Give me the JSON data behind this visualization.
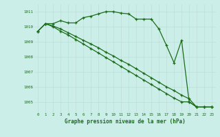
{
  "title": "Graphe pression niveau de la mer (hPa)",
  "background_color": "#cceee8",
  "grid_color": "#c0ddd8",
  "line_color": "#1a6b1a",
  "x_labels": [
    "0",
    "1",
    "2",
    "3",
    "4",
    "5",
    "6",
    "7",
    "8",
    "9",
    "10",
    "11",
    "12",
    "13",
    "14",
    "15",
    "16",
    "17",
    "18",
    "19",
    "20",
    "21",
    "22",
    "23"
  ],
  "ylim": [
    1004.3,
    1011.5
  ],
  "yticks": [
    1005,
    1006,
    1007,
    1008,
    1009,
    1010,
    1011
  ],
  "series1": [
    1009.7,
    1010.2,
    1010.2,
    1010.4,
    1010.25,
    1010.25,
    1010.6,
    1010.7,
    1010.85,
    1011.0,
    1011.0,
    1010.9,
    1010.85,
    1010.5,
    1010.5,
    1010.5,
    1009.85,
    1008.75,
    1007.6,
    1009.1,
    1005.0,
    1004.65,
    1004.65,
    1004.65
  ],
  "series2": [
    1009.7,
    1010.2,
    1010.05,
    1009.85,
    1009.6,
    1009.35,
    1009.1,
    1008.85,
    1008.6,
    1008.3,
    1008.05,
    1007.75,
    1007.5,
    1007.2,
    1006.9,
    1006.6,
    1006.3,
    1006.0,
    1005.75,
    1005.45,
    1005.2,
    1004.65,
    1004.65,
    1004.65
  ],
  "series3": [
    1009.7,
    1010.2,
    1010.0,
    1009.7,
    1009.45,
    1009.15,
    1008.85,
    1008.55,
    1008.25,
    1007.95,
    1007.65,
    1007.35,
    1007.05,
    1006.75,
    1006.45,
    1006.15,
    1005.85,
    1005.55,
    1005.25,
    1005.0,
    1005.0,
    1004.65,
    1004.65,
    1004.65
  ]
}
